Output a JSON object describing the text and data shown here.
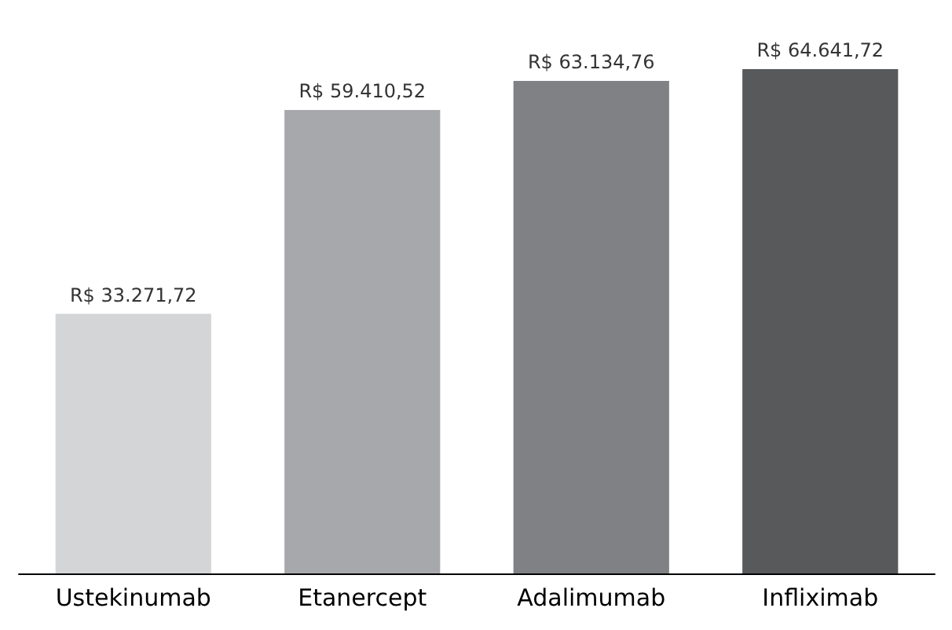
{
  "chart_data": {
    "type": "bar",
    "categories": [
      "Ustekinumab",
      "Etanercept",
      "Adalimumab",
      "Infliximab"
    ],
    "values": [
      33271.72,
      59410.52,
      63134.76,
      64641.72
    ],
    "colors": [
      "#d4d5d7",
      "#a7a8ab",
      "#808184",
      "#58595b"
    ],
    "value_labels": [
      "R$ 33.271,72",
      "R$ 59.410,52",
      "R$ 63.134,76",
      "R$ 64.641,72"
    ]
  }
}
